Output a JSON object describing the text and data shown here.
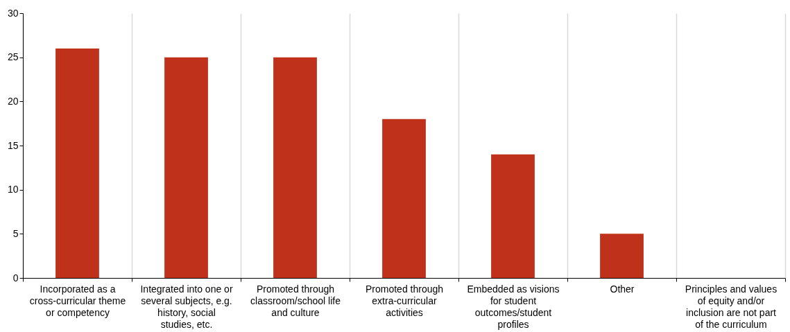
{
  "chart_data": {
    "type": "bar",
    "categories": [
      "Incorporated as a cross-curricular theme or competency",
      "Integrated into one or several subjects, e.g. history, social studies, etc.",
      "Promoted through classroom/school life and culture",
      "Promoted through extra-curricular activities",
      "Embedded as visions for student outcomes/student profiles",
      "Other",
      "Principles and values of equity and/or inclusion are not part of the curriculum"
    ],
    "values": [
      26,
      25,
      25,
      18,
      14,
      5,
      0
    ],
    "color": "#bf311a",
    "ylim": [
      0,
      30
    ],
    "yticks": [
      0,
      5,
      10,
      15,
      20,
      25,
      30
    ],
    "grid": "x"
  }
}
